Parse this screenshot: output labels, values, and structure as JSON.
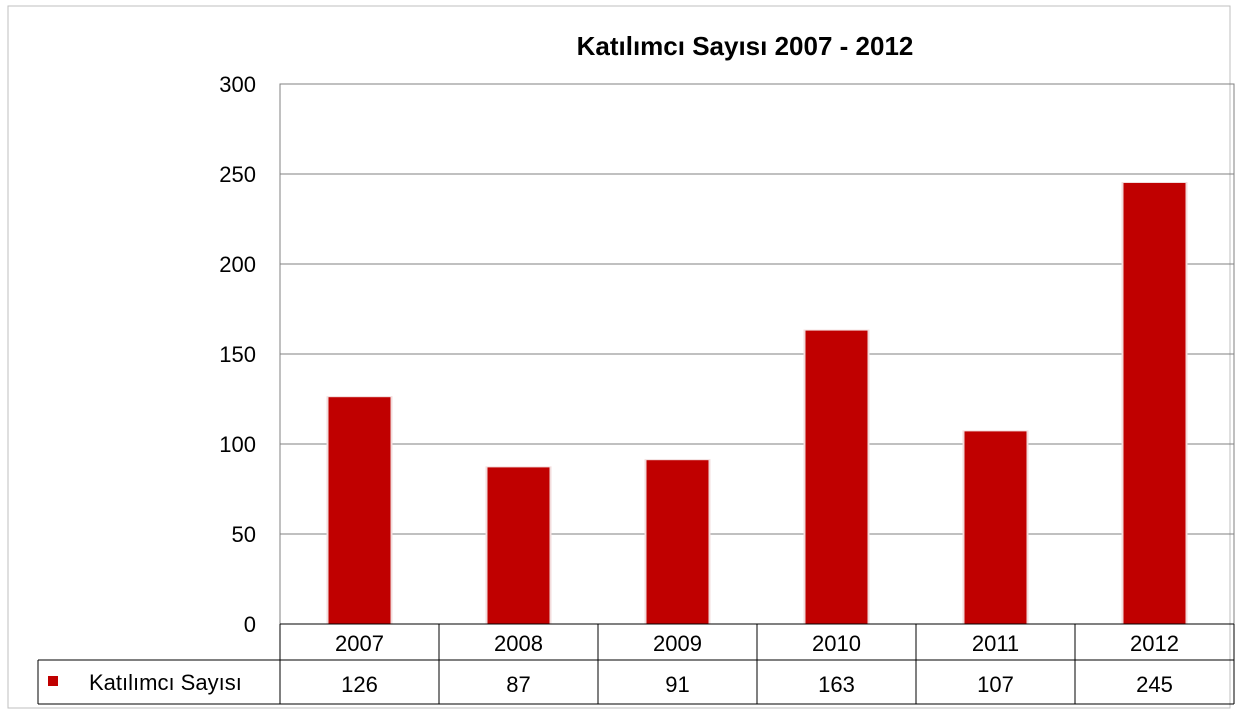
{
  "chart_data": {
    "type": "bar",
    "title": "Katılımcı Sayısı 2007 - 2012",
    "categories": [
      "2007",
      "2008",
      "2009",
      "2010",
      "2011",
      "2012"
    ],
    "series": [
      {
        "name": "Katılımcı Sayısı",
        "values": [
          126,
          87,
          91,
          163,
          107,
          245
        ],
        "color": "#c00000"
      }
    ],
    "ylim": [
      0,
      300
    ],
    "yticks": [
      0,
      50,
      100,
      150,
      200,
      250,
      300
    ],
    "grid": true,
    "legend": "data-table",
    "xlabel": "",
    "ylabel": ""
  }
}
